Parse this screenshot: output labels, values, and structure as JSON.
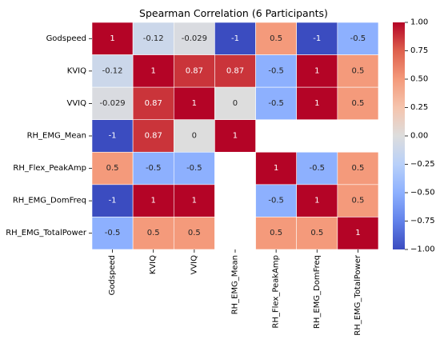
{
  "chart_data": {
    "type": "heatmap",
    "title": "Spearman Correlation (6 Participants)",
    "row_labels": [
      "Godspeed",
      "KVIQ",
      "VVIQ",
      "RH_EMG_Mean",
      "RH_Flex_PeakAmp",
      "RH_EMG_DomFreq",
      "RH_EMG_TotalPower"
    ],
    "col_labels": [
      "Godspeed",
      "KVIQ",
      "VVIQ",
      "RH_EMG_Mean",
      "RH_Flex_PeakAmp",
      "RH_EMG_DomFreq",
      "RH_EMG_TotalPower"
    ],
    "matrix": [
      [
        1,
        -0.12,
        -0.029,
        -1,
        0.5,
        -1,
        -0.5
      ],
      [
        -0.12,
        1,
        0.87,
        0.87,
        -0.5,
        1,
        0.5
      ],
      [
        -0.029,
        0.87,
        1,
        0,
        -0.5,
        1,
        0.5
      ],
      [
        -1,
        0.87,
        0,
        1,
        null,
        null,
        null
      ],
      [
        0.5,
        -0.5,
        -0.5,
        null,
        1,
        -0.5,
        0.5
      ],
      [
        -1,
        1,
        1,
        null,
        -0.5,
        1,
        0.5
      ],
      [
        -0.5,
        0.5,
        0.5,
        null,
        0.5,
        0.5,
        1
      ]
    ],
    "value_labels": [
      [
        "1",
        "-0.12",
        "-0.029",
        "-1",
        "0.5",
        "-1",
        "-0.5"
      ],
      [
        "-0.12",
        "1",
        "0.87",
        "0.87",
        "-0.5",
        "1",
        "0.5"
      ],
      [
        "-0.029",
        "0.87",
        "1",
        "0",
        "-0.5",
        "1",
        "0.5"
      ],
      [
        "-1",
        "0.87",
        "0",
        "1",
        "",
        "",
        ""
      ],
      [
        "0.5",
        "-0.5",
        "-0.5",
        "",
        "1",
        "-0.5",
        "0.5"
      ],
      [
        "-1",
        "1",
        "1",
        "",
        "-0.5",
        "1",
        "0.5"
      ],
      [
        "-0.5",
        "0.5",
        "0.5",
        "",
        "0.5",
        "0.5",
        "1"
      ]
    ],
    "colormap": "coolwarm",
    "vmin": -1,
    "vmax": 1,
    "colorbar_ticks": [
      -1.0,
      -0.75,
      -0.5,
      -0.25,
      0.0,
      0.25,
      0.5,
      0.75,
      1.0
    ],
    "colorbar_tick_labels": [
      "−1.00",
      "−0.75",
      "−0.50",
      "−0.25",
      "0.00",
      "0.25",
      "0.50",
      "0.75",
      "1.00"
    ],
    "annotated": true
  }
}
